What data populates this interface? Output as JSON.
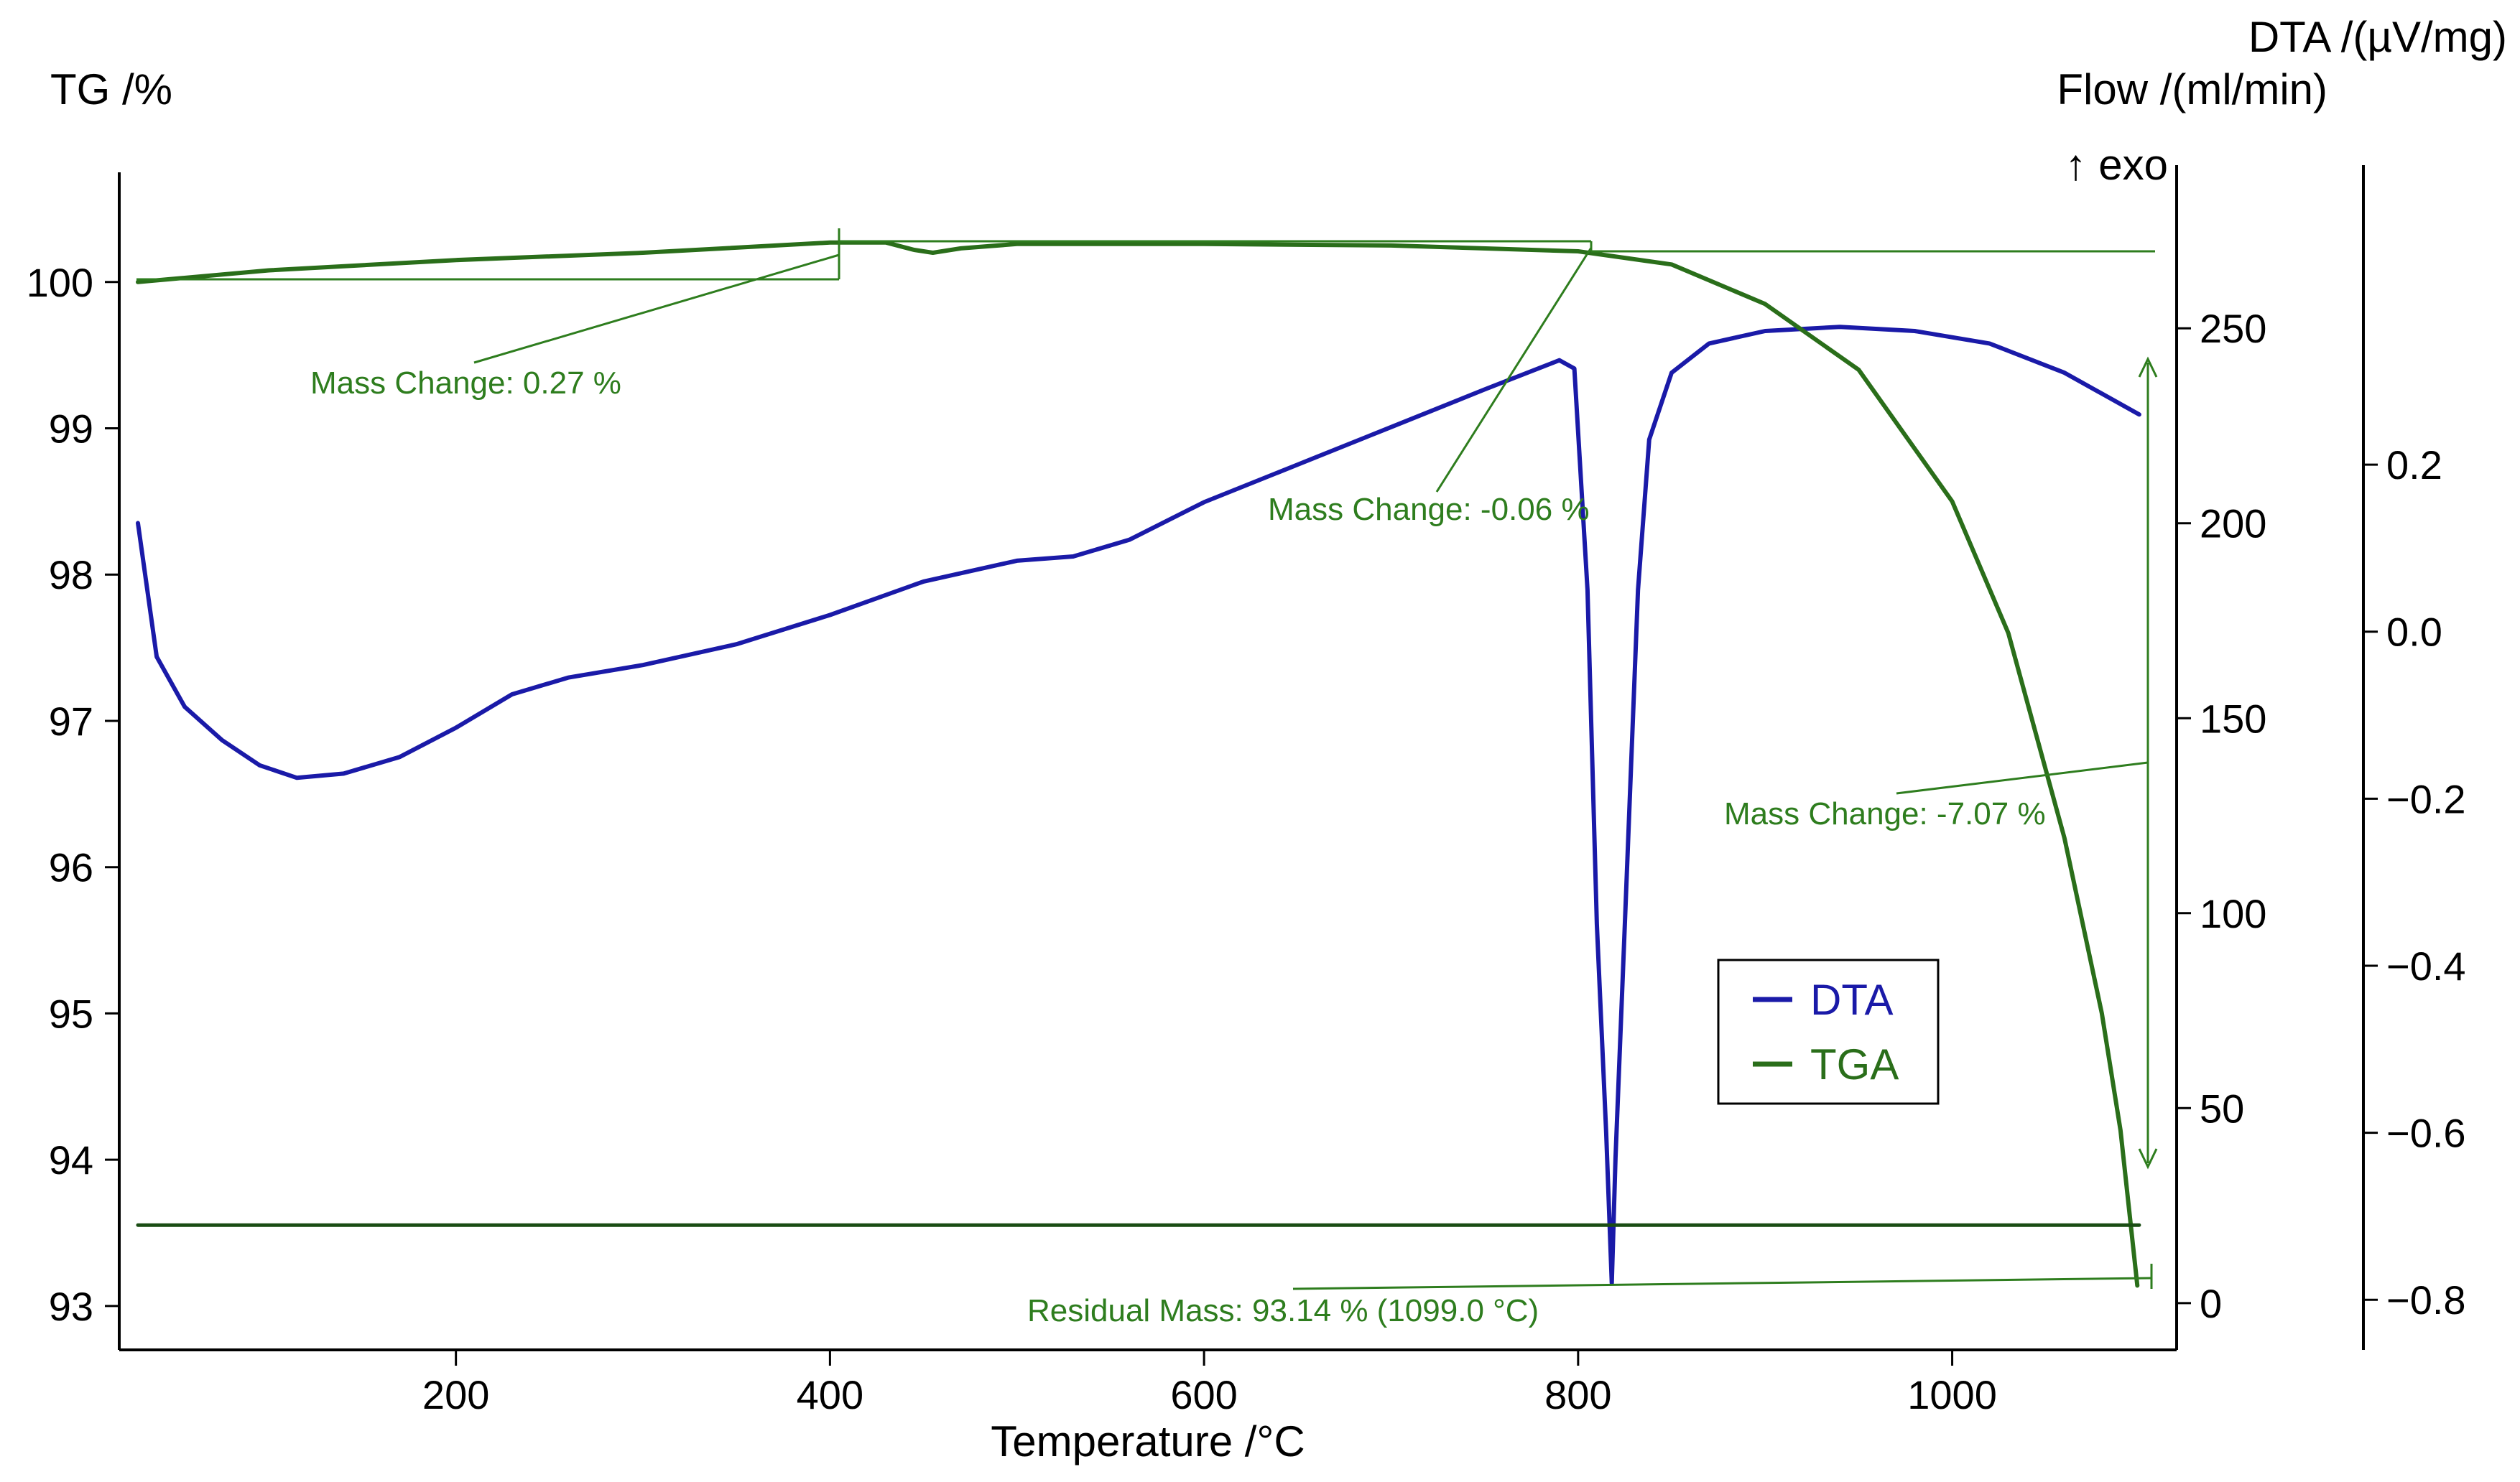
{
  "chart_data": {
    "type": "line",
    "title": "",
    "xlabel": "Temperature /°C",
    "xlim": [
      20,
      1120
    ],
    "xticks": [
      200,
      400,
      600,
      800,
      1000
    ],
    "left_axis": {
      "label": "TG /%",
      "ylim": [
        92.7,
        100.75
      ],
      "ticks": [
        93,
        94,
        95,
        96,
        97,
        98,
        99,
        100
      ]
    },
    "flow_axis": {
      "label": "Flow /(ml/min)",
      "ylim": [
        -12,
        290
      ],
      "ticks": [
        0,
        50,
        100,
        150,
        200,
        250
      ]
    },
    "dta_axis": {
      "label": "DTA /(µV/mg)",
      "exo_label": "↑ exo",
      "ylim": [
        -0.86,
        0.55
      ],
      "ticks": [
        "0.2",
        "0.0",
        "−0.2",
        "−0.4",
        "−0.6",
        "−0.8"
      ],
      "tick_values": [
        0.2,
        0.0,
        -0.2,
        -0.4,
        -0.6,
        -0.8
      ]
    },
    "series": [
      {
        "name": "DTA",
        "color": "#1a1aa8",
        "axis": "dta",
        "points": [
          [
            30,
            0.13
          ],
          [
            40,
            -0.03
          ],
          [
            55,
            -0.09
          ],
          [
            75,
            -0.13
          ],
          [
            95,
            -0.16
          ],
          [
            115,
            -0.175
          ],
          [
            140,
            -0.17
          ],
          [
            170,
            -0.15
          ],
          [
            200,
            -0.115
          ],
          [
            230,
            -0.075
          ],
          [
            260,
            -0.055
          ],
          [
            300,
            -0.04
          ],
          [
            350,
            -0.015
          ],
          [
            400,
            0.02
          ],
          [
            450,
            0.06
          ],
          [
            500,
            0.085
          ],
          [
            530,
            0.09
          ],
          [
            560,
            0.11
          ],
          [
            600,
            0.155
          ],
          [
            650,
            0.2
          ],
          [
            700,
            0.245
          ],
          [
            750,
            0.29
          ],
          [
            790,
            0.325
          ],
          [
            798,
            0.315
          ],
          [
            805,
            0.05
          ],
          [
            810,
            -0.35
          ],
          [
            815,
            -0.6
          ],
          [
            818,
            -0.78
          ],
          [
            820,
            -0.63
          ],
          [
            825,
            -0.35
          ],
          [
            832,
            0.05
          ],
          [
            838,
            0.23
          ],
          [
            850,
            0.31
          ],
          [
            870,
            0.345
          ],
          [
            900,
            0.36
          ],
          [
            940,
            0.365
          ],
          [
            980,
            0.36
          ],
          [
            1020,
            0.345
          ],
          [
            1060,
            0.31
          ],
          [
            1100,
            0.26
          ]
        ]
      },
      {
        "name": "TGA",
        "color": "#2a6e1a",
        "axis": "tg",
        "points": [
          [
            30,
            100.0
          ],
          [
            100,
            100.08
          ],
          [
            200,
            100.15
          ],
          [
            300,
            100.2
          ],
          [
            400,
            100.27
          ],
          [
            430,
            100.27
          ],
          [
            445,
            100.22
          ],
          [
            455,
            100.2
          ],
          [
            470,
            100.23
          ],
          [
            500,
            100.26
          ],
          [
            600,
            100.26
          ],
          [
            700,
            100.25
          ],
          [
            800,
            100.21
          ],
          [
            850,
            100.12
          ],
          [
            900,
            99.85
          ],
          [
            950,
            99.4
          ],
          [
            1000,
            98.5
          ],
          [
            1030,
            97.6
          ],
          [
            1060,
            96.2
          ],
          [
            1080,
            95.0
          ],
          [
            1090,
            94.2
          ],
          [
            1099,
            93.14
          ]
        ]
      },
      {
        "name": "Flow",
        "color": "#1a4d14",
        "axis": "flow",
        "points": [
          [
            30,
            20
          ],
          [
            1100,
            20
          ]
        ]
      }
    ],
    "legend": {
      "position": "center-right",
      "entries": [
        {
          "label": "DTA",
          "color": "#1a1aa8"
        },
        {
          "label": "TGA",
          "color": "#2a6e1a"
        }
      ]
    },
    "annotations": [
      {
        "text": "Mass Change: 0.27 %"
      },
      {
        "text": "Mass Change: -0.06 %"
      },
      {
        "text": "Mass Change: -7.07 %"
      },
      {
        "text": "Residual Mass: 93.14 % (1099.0 °C)"
      }
    ]
  }
}
